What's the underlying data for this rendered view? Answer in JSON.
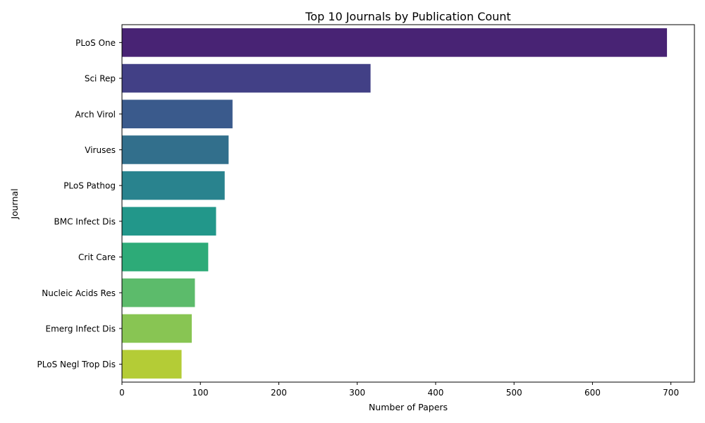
{
  "chart_data": {
    "type": "bar",
    "orientation": "horizontal",
    "title": "Top 10 Journals by Publication Count",
    "xlabel": "Number of Papers",
    "ylabel": "Journal",
    "categories": [
      "PLoS One",
      "Sci Rep",
      "Arch Virol",
      "Viruses",
      "PLoS Pathog",
      "BMC Infect Dis",
      "Crit Care",
      "Nucleic Acids Res",
      "Emerg Infect Dis",
      "PLoS Negl Trop Dis"
    ],
    "values": [
      695,
      317,
      141,
      136,
      131,
      120,
      110,
      93,
      89,
      76
    ],
    "xlim": [
      0,
      730
    ],
    "xticks": [
      0,
      100,
      200,
      300,
      400,
      500,
      600,
      700
    ],
    "grid": false,
    "legend": "none",
    "colors": [
      "#482374",
      "#424086",
      "#3a5a8c",
      "#326f8c",
      "#29838e",
      "#22978a",
      "#2dab78",
      "#5cbb6b",
      "#88c553",
      "#b4cc36"
    ]
  }
}
